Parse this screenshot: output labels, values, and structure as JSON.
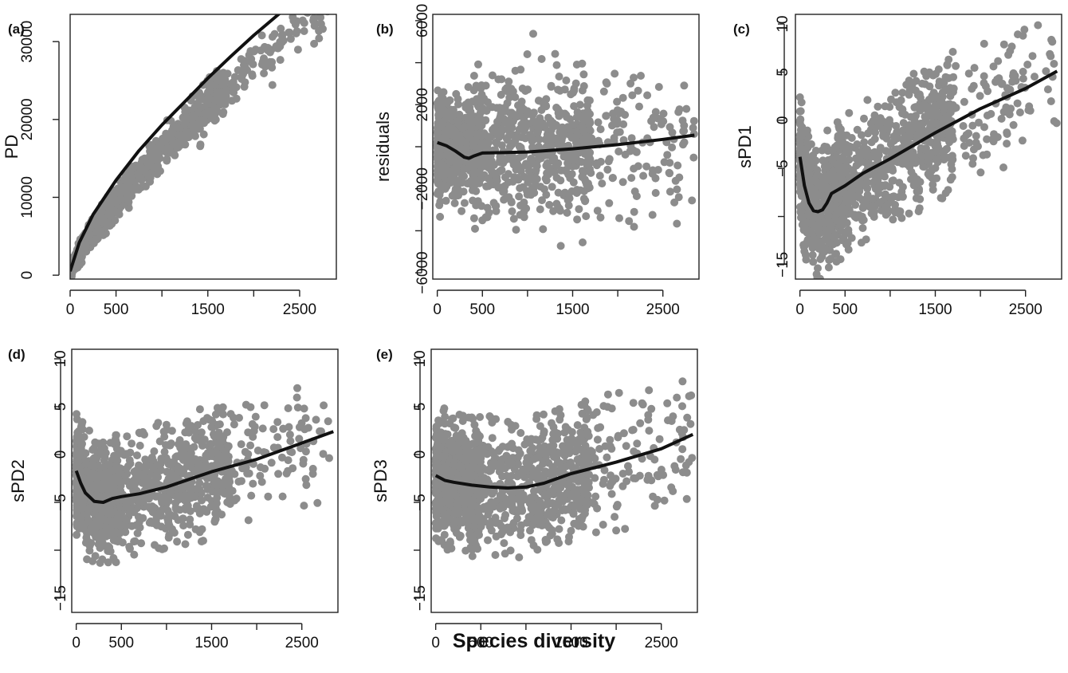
{
  "colors": {
    "point": "#8c8c8c",
    "line": "#111111",
    "axis": "#222222",
    "background": "#ffffff"
  },
  "figure": {
    "xlabel": "Species diversity"
  },
  "chart_data": [
    {
      "id": "a",
      "panel_label": "(a)",
      "type": "scatter",
      "ylabel": "PD",
      "xlim": [
        0,
        2900
      ],
      "ylim": [
        -500,
        33500
      ],
      "xticks": [
        0,
        500,
        1000,
        1500,
        2000,
        2500
      ],
      "xtick_labels": [
        "0",
        "500",
        "",
        "1500",
        "",
        "2500"
      ],
      "yticks": [
        0,
        10000,
        20000,
        30000
      ],
      "ytick_labels": [
        "0",
        "10000",
        "20000",
        "30000"
      ],
      "grid": false,
      "scatter_model": {
        "kind": "power",
        "a": 97,
        "p": 0.74,
        "sd": 1500,
        "rangeSd": 0.5,
        "xmax": 2850,
        "n": 1300
      },
      "curve": {
        "x": [
          0,
          100,
          250,
          500,
          750,
          1000,
          1250,
          1500,
          1750,
          2000,
          2250,
          2500
        ],
        "y": [
          500,
          4200,
          7800,
          12200,
          16000,
          19300,
          22300,
          25300,
          28100,
          30800,
          33300,
          35800
        ]
      }
    },
    {
      "id": "b",
      "panel_label": "(b)",
      "type": "scatter",
      "ylabel": "residuals",
      "xlim": [
        -50,
        2900
      ],
      "ylim": [
        -6300,
        6300
      ],
      "xticks": [
        0,
        500,
        1000,
        1500,
        2000,
        2500
      ],
      "xtick_labels": [
        "0",
        "500",
        "",
        "1500",
        "",
        "2500"
      ],
      "yticks": [
        -6000,
        -4000,
        -2000,
        0,
        2000,
        4000,
        6000
      ],
      "ytick_labels": [
        "−6000",
        "",
        "−2000",
        "",
        "2000",
        "",
        "6000"
      ],
      "grid": false,
      "scatter_model": {
        "kind": "flat",
        "center": 0,
        "sd": 1700,
        "sdSmall": 1100,
        "range": 5500,
        "xmax": 2850,
        "n": 1300
      },
      "curve": {
        "x": [
          0,
          100,
          200,
          300,
          350,
          400,
          500,
          1000,
          1500,
          2000,
          2500,
          2850
        ],
        "y": [
          200,
          50,
          -200,
          -500,
          -550,
          -450,
          -300,
          -250,
          -100,
          100,
          350,
          550
        ]
      }
    },
    {
      "id": "c",
      "panel_label": "(c)",
      "type": "scatter",
      "ylabel": "sPD1",
      "xlim": [
        -50,
        2900
      ],
      "ylim": [
        -16.5,
        11
      ],
      "xticks": [
        0,
        500,
        1000,
        1500,
        2000,
        2500
      ],
      "xtick_labels": [
        "0",
        "500",
        "",
        "1500",
        "",
        "2500"
      ],
      "yticks": [
        -15,
        -10,
        -5,
        0,
        5,
        10
      ],
      "ytick_labels": [
        "−15",
        "",
        "−5",
        "0",
        "5",
        "10"
      ],
      "grid": false,
      "scatter_model": {
        "kind": "curve",
        "sd": 3.6,
        "range": 7.5,
        "xmax": 2850,
        "n": 1300
      },
      "curve": {
        "x": [
          0,
          50,
          100,
          150,
          200,
          250,
          300,
          350,
          500,
          700,
          1000,
          1500,
          2000,
          2500,
          2850
        ],
        "y": [
          -3.8,
          -6.8,
          -8.6,
          -9.4,
          -9.5,
          -9.3,
          -8.6,
          -7.6,
          -6.8,
          -5.5,
          -4.0,
          -1.3,
          1.2,
          3.3,
          5.1
        ]
      }
    },
    {
      "id": "d",
      "panel_label": "(d)",
      "type": "scatter",
      "ylabel": "sPD2",
      "xlim": [
        -50,
        2900
      ],
      "ylim": [
        -16.5,
        11
      ],
      "xticks": [
        0,
        500,
        1000,
        1500,
        2000,
        2500
      ],
      "xtick_labels": [
        "0",
        "500",
        "",
        "1500",
        "",
        "2500"
      ],
      "yticks": [
        -15,
        -10,
        -5,
        0,
        5,
        10
      ],
      "ytick_labels": [
        "−15",
        "",
        "−5",
        "0",
        "5",
        "10"
      ],
      "grid": false,
      "scatter_model": {
        "kind": "curve",
        "sd": 3.3,
        "range": 7,
        "xmax": 2850,
        "n": 1300
      },
      "curve": {
        "x": [
          0,
          50,
          100,
          200,
          300,
          400,
          500,
          700,
          1000,
          1500,
          2000,
          2500,
          2850
        ],
        "y": [
          -1.7,
          -3.0,
          -4.0,
          -4.9,
          -5.0,
          -4.6,
          -4.4,
          -4.1,
          -3.4,
          -1.8,
          -0.5,
          1.2,
          2.4
        ]
      }
    },
    {
      "id": "e",
      "panel_label": "(e)",
      "type": "scatter",
      "ylabel": "sPD3",
      "xlim": [
        -50,
        2900
      ],
      "ylim": [
        -16.5,
        11
      ],
      "xticks": [
        0,
        500,
        1000,
        1500,
        2000,
        2500
      ],
      "xtick_labels": [
        "0",
        "500",
        "",
        "1500",
        "",
        "2500"
      ],
      "yticks": [
        -15,
        -10,
        -5,
        0,
        5,
        10
      ],
      "ytick_labels": [
        "−15",
        "",
        "−5",
        "0",
        "5",
        "10"
      ],
      "grid": false,
      "scatter_model": {
        "kind": "curve",
        "sd": 3.4,
        "range": 7.5,
        "xmax": 2850,
        "n": 1300
      },
      "curve": {
        "x": [
          0,
          100,
          200,
          400,
          600,
          800,
          1000,
          1200,
          1500,
          2000,
          2500,
          2850
        ],
        "y": [
          -2.2,
          -2.7,
          -2.9,
          -3.2,
          -3.4,
          -3.5,
          -3.4,
          -3.0,
          -2.0,
          -0.8,
          0.6,
          2.1
        ]
      }
    }
  ]
}
